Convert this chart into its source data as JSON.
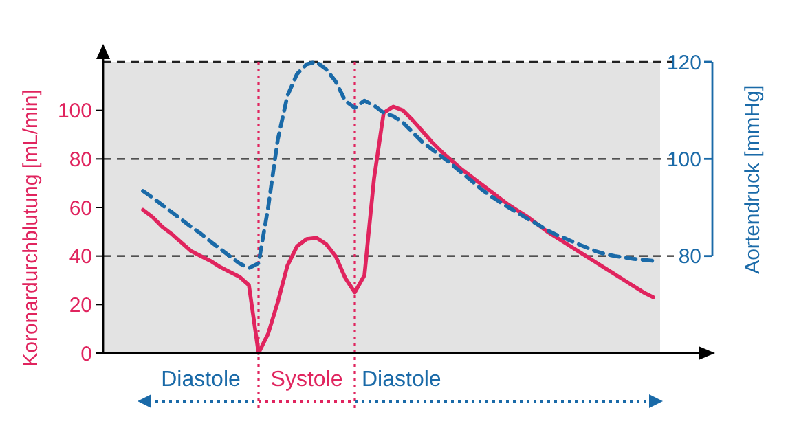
{
  "chart_data": {
    "type": "line",
    "categories": [
      null,
      null,
      null,
      null,
      null,
      null,
      null,
      null,
      null,
      null,
      null,
      null,
      null,
      null,
      null,
      null,
      null,
      null,
      null,
      null,
      null,
      null,
      null,
      null,
      null,
      null,
      null,
      null,
      null,
      null,
      null,
      null,
      null,
      null,
      null,
      null,
      null,
      null,
      null,
      null,
      null,
      null,
      null,
      null,
      null,
      null,
      null,
      null,
      null,
      null,
      null,
      null,
      null,
      null
    ],
    "ylim": [
      0,
      120
    ],
    "yticks": [
      0,
      20,
      40,
      60,
      80,
      100
    ],
    "y2lim": [
      60,
      120
    ],
    "y2ticks": [
      80,
      100,
      120
    ],
    "ylabel": "Koronardurchblutung [mL/min]",
    "y2label": "Aortendruck [mmHg]",
    "grid": "y2",
    "tick_labels": "y",
    "series": [
      {
        "color": "#e0245e",
        "line_style": "solid",
        "values": [
          59,
          56,
          52,
          49,
          45.5,
          42,
          40,
          38,
          35.5,
          33.5,
          31.5,
          28,
          0,
          8,
          21,
          36,
          44,
          47,
          47.5,
          45,
          40,
          31,
          25,
          32,
          72,
          99,
          101.5,
          100,
          96,
          91.5,
          87,
          83,
          79.5,
          76,
          73,
          70,
          67,
          64,
          61,
          58.5,
          56,
          53,
          50,
          47.5,
          45,
          42.5,
          40,
          37.5,
          35,
          32.5,
          30,
          27.5,
          25,
          23
        ]
      },
      {
        "color": "#1a6aa8",
        "line_style": "dashed",
        "axis": "y2",
        "values": [
          93.4,
          92,
          90.5,
          89,
          87.5,
          86,
          84.6,
          83,
          81.5,
          80,
          78.5,
          77.5,
          78.5,
          90,
          104,
          113,
          117.5,
          119.5,
          120,
          118.5,
          116,
          112,
          110.5,
          112,
          111,
          109.5,
          108.8,
          107.5,
          105.5,
          103.5,
          102,
          100.5,
          99,
          97.3,
          95.7,
          94,
          92.5,
          91.2,
          90,
          88.8,
          87.6,
          86.5,
          85.3,
          84.3,
          83.5,
          82.6,
          81.8,
          81,
          80.4,
          80,
          79.7,
          79.4,
          79.2,
          79
        ]
      }
    ],
    "annotations": [
      "Diastole",
      "Systole",
      "Diastole"
    ]
  }
}
